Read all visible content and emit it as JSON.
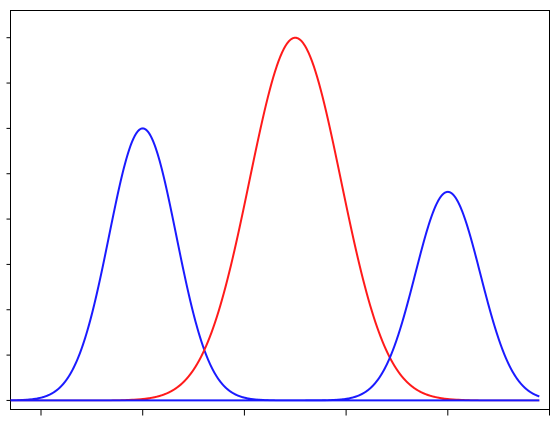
{
  "chart_data": {
    "type": "line",
    "title": "",
    "xlabel": "",
    "ylabel": "",
    "xlim": [
      -0.3,
      5.0
    ],
    "ylim": [
      -0.02,
      0.86
    ],
    "grid": false,
    "legend": null,
    "x_ticks": [
      0,
      1,
      2,
      3,
      4,
      5
    ],
    "y_ticks": [
      0,
      0.1,
      0.2,
      0.3,
      0.4,
      0.5,
      0.6,
      0.7,
      0.8
    ],
    "tick_labels_visible": false,
    "series": [
      {
        "color": "#1a1aff",
        "kind": "gaussian",
        "amplitude": 0.6,
        "mean": 1.0,
        "std": 0.33,
        "x_range": [
          -0.3,
          2.8
        ]
      },
      {
        "color": "#ff1a1a",
        "kind": "gaussian",
        "amplitude": 0.8,
        "mean": 2.5,
        "std": 0.45,
        "x_range": [
          -0.3,
          4.9
        ]
      },
      {
        "color": "#1a1aff",
        "kind": "gaussian",
        "amplitude": 0.46,
        "mean": 4.0,
        "std": 0.32,
        "x_range": [
          2.6,
          4.9
        ]
      },
      {
        "color": "#1a1aff",
        "kind": "constant",
        "value": 0,
        "x_range": [
          -0.3,
          4.9
        ]
      }
    ]
  }
}
